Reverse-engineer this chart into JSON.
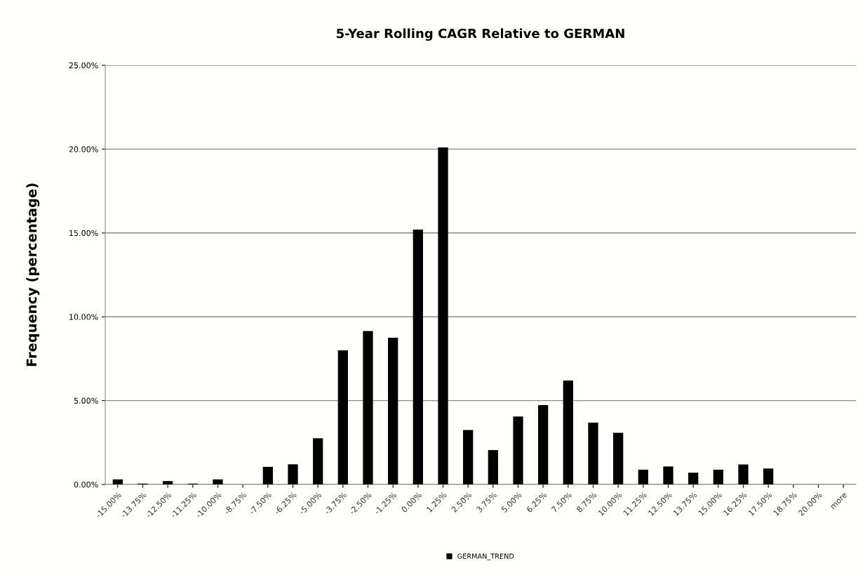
{
  "chart_data": {
    "type": "bar",
    "title": "5-Year Rolling CAGR Relative to GERMAN",
    "ylabel": "Frequency (percentage)",
    "categories": [
      "-15.00%",
      "-13.75%",
      "-12.50%",
      "-11.25%",
      "-10.00%",
      "-8.75%",
      "-7.50%",
      "-6.25%",
      "-5.00%",
      "-3.75%",
      "-2.50%",
      "-1.25%",
      "0.00%",
      "1.25%",
      "2.50%",
      "3.75%",
      "5.00%",
      "6.25%",
      "7.50%",
      "8.75%",
      "10.00%",
      "11.25%",
      "12.50%",
      "13.75%",
      "15.00%",
      "16.25%",
      "17.50%",
      "18.75%",
      "20.00%",
      "more"
    ],
    "series": [
      {
        "name": "GERMAN_TREND",
        "color": "#000000",
        "values": [
          0.3,
          0.05,
          0.2,
          0.05,
          0.3,
          0,
          1.05,
          1.2,
          2.75,
          8.0,
          9.15,
          8.75,
          15.2,
          20.1,
          3.25,
          2.05,
          4.05,
          4.73,
          6.2,
          3.69,
          3.08,
          0.88,
          1.07,
          0.7,
          0.88,
          1.19,
          0.95,
          0,
          0,
          0
        ]
      }
    ],
    "ylim": [
      0,
      25
    ],
    "yticks": [
      {
        "value": 0,
        "label": "0.00%"
      },
      {
        "value": 5,
        "label": "5.00%"
      },
      {
        "value": 10,
        "label": "10.00%"
      },
      {
        "value": 15,
        "label": "15.00%"
      },
      {
        "value": 20,
        "label": "20.00%"
      },
      {
        "value": 25,
        "label": "25.00%"
      }
    ],
    "grid": "y",
    "legend": "bottom"
  }
}
